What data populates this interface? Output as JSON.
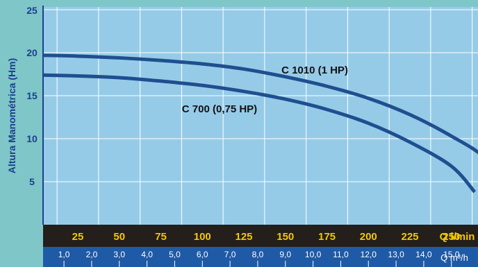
{
  "chart_data": {
    "type": "line",
    "ylabel": "Altura Manométrica (Hm)",
    "ylim": [
      0,
      25
    ],
    "yticks": [
      5,
      10,
      15,
      20,
      25
    ],
    "xlim": [
      0,
      282
    ],
    "x_flow_lpm_ticks": [
      25,
      50,
      75,
      100,
      125,
      150,
      175,
      200,
      225,
      250
    ],
    "x_flow_lpm_unit": "Q l/min",
    "x_flow_m3h_ticks": [
      "1,0",
      "2,0",
      "3,0",
      "4,0",
      "5,0",
      "6,0",
      "7,0",
      "8,0",
      "9,0",
      "10,0",
      "11,0",
      "12,0",
      "13,0",
      "14,0",
      "15,0"
    ],
    "x_flow_m3h_values": [
      1,
      2,
      3,
      4,
      5,
      6,
      7,
      8,
      9,
      10,
      11,
      12,
      13,
      14,
      15
    ],
    "x_flow_m3h_unit": "Q m³/h",
    "grid": true,
    "series": [
      {
        "name": "C 1010 (1 HP)",
        "color": "#1f4f8f",
        "x": [
          0,
          25,
          50,
          75,
          100,
          125,
          150,
          175,
          200,
          225,
          250,
          270,
          282
        ],
        "y": [
          19.7,
          19.6,
          19.4,
          19.1,
          18.7,
          18.1,
          17.2,
          16.1,
          14.7,
          12.8,
          10.3,
          7.8,
          4.5
        ]
      },
      {
        "name": "C 700 (0,75 HP)",
        "color": "#1f4f8f",
        "x": [
          0,
          25,
          50,
          75,
          100,
          125,
          150,
          175,
          200,
          225,
          250,
          264
        ],
        "y": [
          17.4,
          17.3,
          17.1,
          16.7,
          16.2,
          15.5,
          14.6,
          13.4,
          11.8,
          9.6,
          6.8,
          3.8
        ]
      }
    ]
  }
}
